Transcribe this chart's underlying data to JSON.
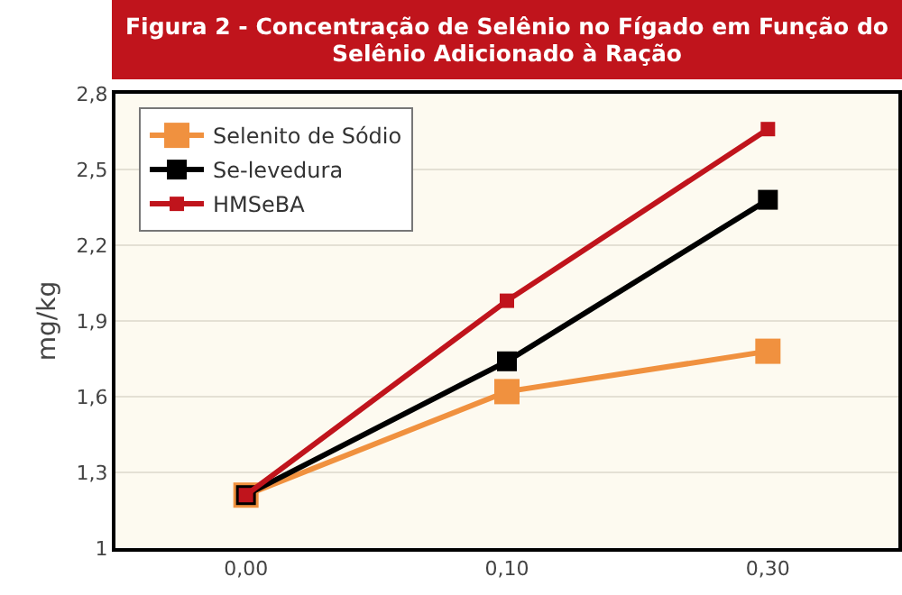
{
  "chart_data": {
    "type": "line",
    "title": "Figura 2 - Concentração de Selênio no Fígado em Função do Selênio Adicionado à Ração",
    "ylabel": "mg/kg",
    "categories": [
      "0,00",
      "0,10",
      "0,30"
    ],
    "series": [
      {
        "name": "Selenito de Sódio",
        "color": "#f0913f",
        "values": [
          1.21,
          1.62,
          1.78
        ]
      },
      {
        "name": "Se-levedura",
        "color": "#000000",
        "values": [
          1.21,
          1.74,
          2.38
        ]
      },
      {
        "name": "HMSeBA",
        "color": "#c0141c",
        "values": [
          1.21,
          1.98,
          2.66
        ]
      }
    ],
    "ylim": [
      1,
      2.8
    ],
    "yticks": [
      1,
      {
        "value": 1.3,
        "label": "1,3"
      },
      {
        "value": 1.6,
        "label": "1,6"
      },
      {
        "value": 1.9,
        "label": "1,9"
      },
      {
        "value": 2.2,
        "label": "2,2"
      },
      {
        "value": 2.5,
        "label": "2,5"
      },
      {
        "value": 2.8,
        "label": "2,8"
      }
    ],
    "grid": "y",
    "legend": "top left",
    "marker": "square",
    "line_style": "solid"
  }
}
